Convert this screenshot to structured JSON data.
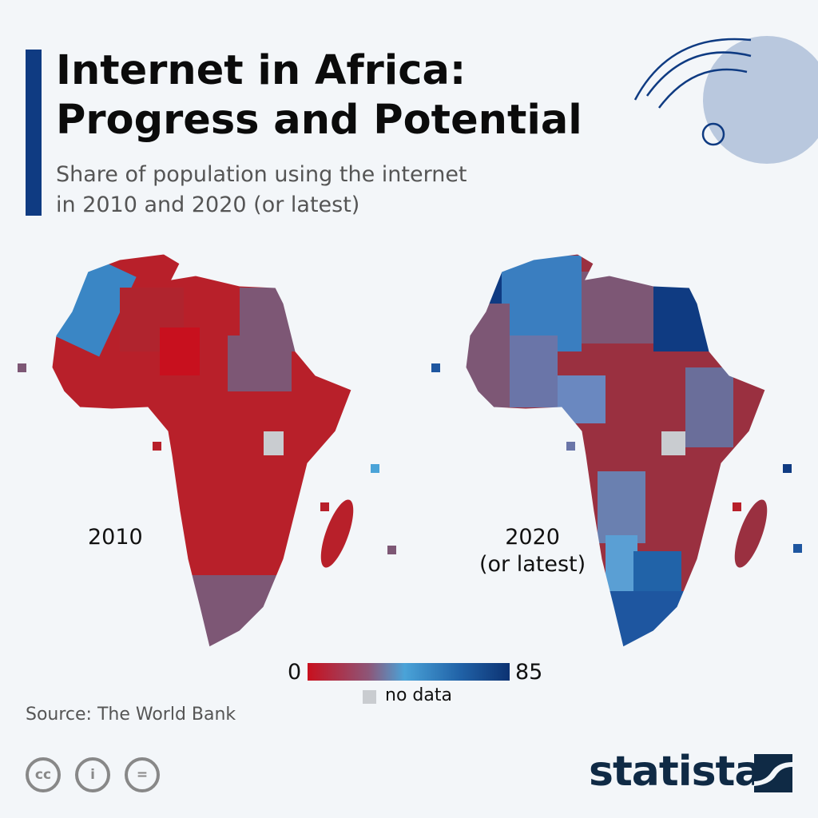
{
  "header": {
    "title_line1": "Internet in Africa:",
    "title_line2": "Progress and Potential",
    "subtitle_line1": "Share of population using the internet",
    "subtitle_line2": "in 2010 and 2020 (or latest)"
  },
  "maps": [
    {
      "label": "2010",
      "dominant_color": "#b8202a"
    },
    {
      "label_line1": "2020",
      "label_line2": "(or latest)",
      "dominant_color": "#4a7ab5"
    }
  ],
  "legend": {
    "min": "0",
    "max": "85",
    "no_data": "no data",
    "colors": [
      "#c8101e",
      "#8e5577",
      "#4aa3d8",
      "#0c3272"
    ],
    "no_data_color": "#c9ccd0"
  },
  "footer": {
    "source": "Source: The World Bank",
    "license_icons": [
      "cc-icon",
      "by-icon",
      "nd-icon"
    ],
    "brand": "statista"
  }
}
